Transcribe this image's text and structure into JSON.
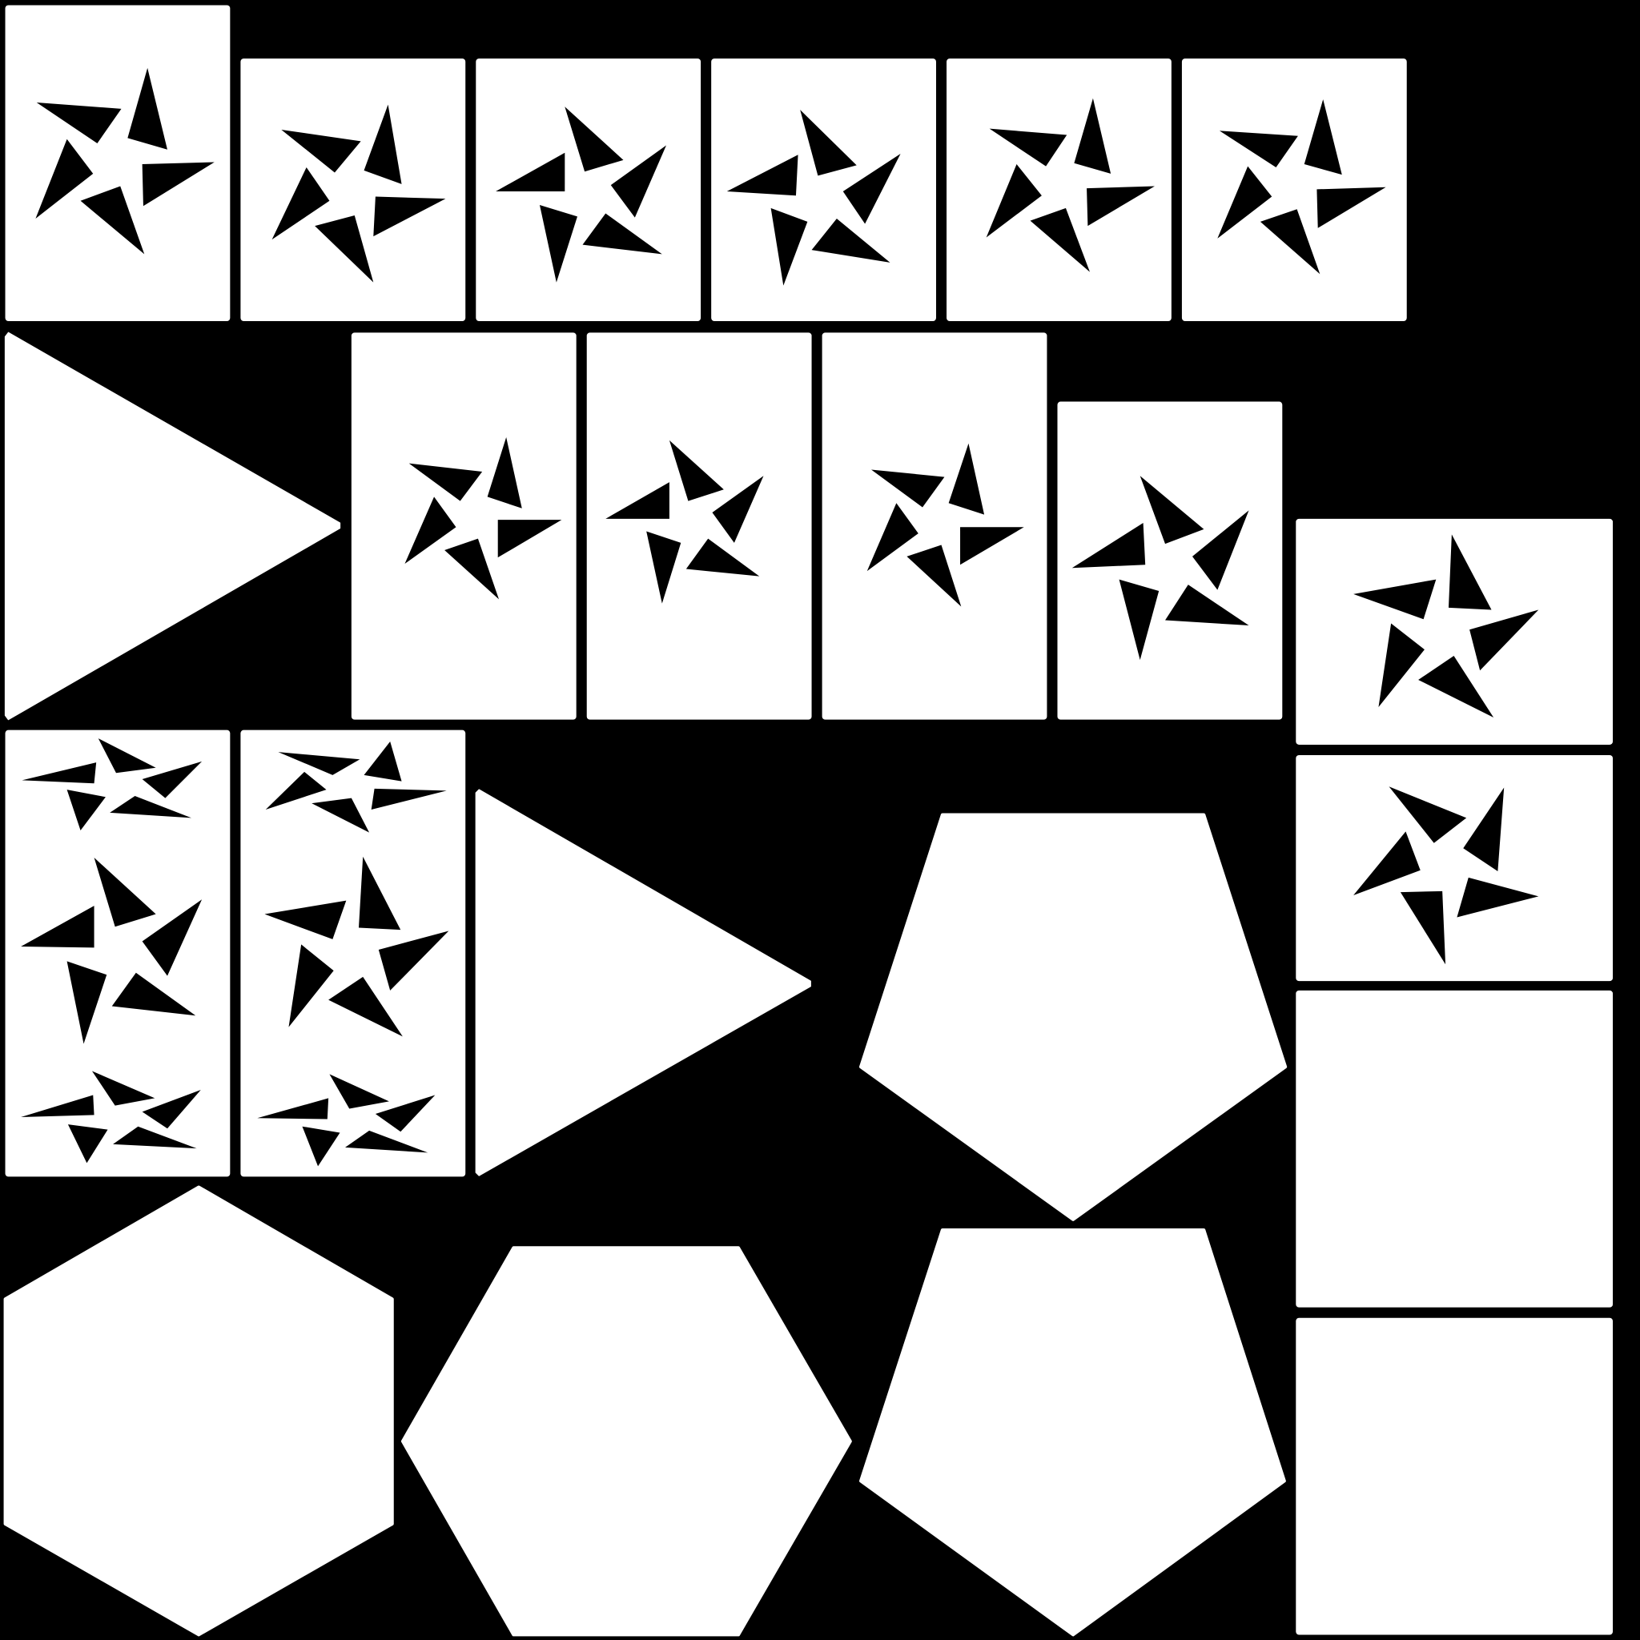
{
  "sheet": {
    "background": "#000000",
    "tile_color": "#ffffff",
    "cutout_color": "#000000"
  }
}
